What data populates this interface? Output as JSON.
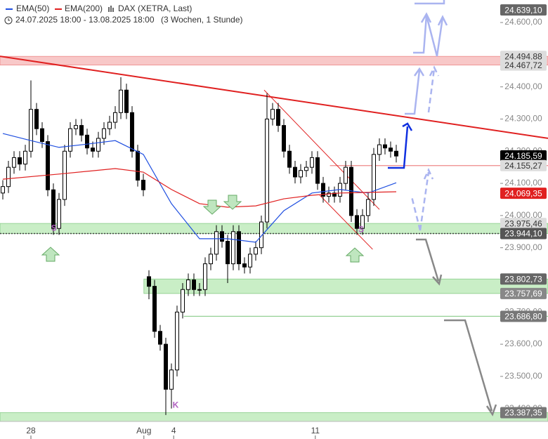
{
  "chart_data": {
    "type": "candlestick",
    "title": "DAX (XETRA, Last)",
    "subtitle": "24.07.2025 18:00 - 13.08.2025 18:00",
    "period": "(3 Wochen, 1 Stunde)",
    "xlim": [
      -0.5,
      97
    ],
    "ylim": [
      23360,
      24670
    ],
    "xticks": [
      {
        "value": 5,
        "label": "28"
      },
      {
        "value": 25.1,
        "label": "Aug"
      },
      {
        "value": 30.4,
        "label": "4"
      },
      {
        "value": 55.6,
        "label": "11"
      }
    ],
    "yticks": [
      {
        "value": 23400,
        "label": "23.400,00"
      },
      {
        "value": 23500,
        "label": "23.500,00"
      },
      {
        "value": 23600,
        "label": "23.600,00"
      },
      {
        "value": 23700,
        "label": "23.700,00"
      },
      {
        "value": 23800,
        "label": "23.800,00"
      },
      {
        "value": 23900,
        "label": "23.900,00"
      },
      {
        "value": 24000,
        "label": "24.000,00"
      },
      {
        "value": 24100,
        "label": "24.100,00"
      },
      {
        "value": 24200,
        "label": "24.200,00"
      },
      {
        "value": 24300,
        "label": "24.300,00"
      },
      {
        "value": 24400,
        "label": "24.400,00"
      },
      {
        "value": 24500,
        "label": "24.500,00"
      },
      {
        "value": 24600,
        "label": "24.600,00"
      }
    ],
    "open": [
      24070,
      24090,
      24150,
      24180,
      24160,
      24200,
      24330,
      24270,
      24230,
      24080,
      23960,
      24050,
      24200,
      24270,
      24280,
      24250,
      24210,
      24200,
      24240,
      24270,
      24290,
      24320,
      24390,
      24320,
      24200,
      24110,
      23810,
      23780,
      23640,
      23600,
      23460,
      23520,
      23700,
      23770,
      23800,
      23770,
      23770,
      23850,
      23880,
      23950,
      23920,
      23850,
      23950,
      23850,
      23840,
      23880,
      23900,
      23980,
      24300,
      24330,
      24280,
      24200,
      24150,
      24120,
      24140,
      24150,
      24180,
      24100,
      24060,
      24070,
      24060,
      24100,
      24150,
      24000,
      23960,
      24000,
      24050,
      24190,
      24220,
      24210,
      24200
    ],
    "high": [
      24110,
      24170,
      24200,
      24200,
      24220,
      24420,
      24350,
      24290,
      24250,
      24100,
      24070,
      24220,
      24290,
      24300,
      24300,
      24270,
      24230,
      24260,
      24290,
      24310,
      24340,
      24430,
      24410,
      24340,
      24220,
      24130,
      23830,
      23800,
      23660,
      23620,
      23540,
      23720,
      23790,
      23820,
      23820,
      23790,
      23870,
      23900,
      23970,
      23970,
      23940,
      23970,
      23970,
      23870,
      23900,
      23920,
      24000,
      24380,
      24350,
      24350,
      24300,
      24220,
      24170,
      24160,
      24170,
      24200,
      24200,
      24120,
      24090,
      24090,
      24120,
      24170,
      24170,
      24020,
      24020,
      24070,
      24210,
      24240,
      24240,
      24230,
      24220
    ],
    "low": [
      24050,
      24070,
      24130,
      24140,
      24140,
      24180,
      24250,
      24210,
      24060,
      23940,
      23940,
      24030,
      24180,
      24250,
      24230,
      24190,
      24180,
      24180,
      24220,
      24250,
      24270,
      24300,
      24300,
      24180,
      24090,
      24060,
      23740,
      23620,
      23580,
      23380,
      23400,
      23500,
      23680,
      23750,
      23750,
      23750,
      23750,
      23830,
      23860,
      23900,
      23790,
      23830,
      23830,
      23820,
      23820,
      23860,
      23880,
      23960,
      24280,
      24260,
      24180,
      24130,
      24100,
      24100,
      24120,
      24130,
      24080,
      24040,
      24040,
      24040,
      24040,
      24080,
      23980,
      23940,
      23940,
      23980,
      24030,
      24170,
      24190,
      24180,
      24165
    ],
    "close": [
      24090,
      24150,
      24180,
      24160,
      24200,
      24330,
      24270,
      24230,
      24080,
      23960,
      24050,
      24200,
      24270,
      24280,
      24250,
      24210,
      24200,
      24240,
      24270,
      24290,
      24320,
      24390,
      24320,
      24200,
      24110,
      24080,
      23780,
      23640,
      23600,
      23460,
      23520,
      23700,
      23770,
      23800,
      23770,
      23770,
      23850,
      23880,
      23950,
      23920,
      23850,
      23950,
      23850,
      23840,
      23880,
      23900,
      23980,
      24300,
      24330,
      24280,
      24200,
      24150,
      24120,
      24140,
      24150,
      24180,
      24100,
      24060,
      24070,
      24060,
      24100,
      24150,
      24000,
      23960,
      24000,
      24050,
      24190,
      24220,
      24210,
      24200,
      24185
    ],
    "series": [
      {
        "name": "EMA(50)",
        "color": "#1f4fe0",
        "x": [
          0,
          5,
          10,
          15,
          20,
          25,
          30,
          35,
          40,
          45,
          50,
          55,
          60,
          65,
          70
        ],
        "values": [
          24255,
          24233,
          24212,
          24222,
          24233,
          24190,
          24037,
          23928,
          23928,
          23917,
          24015,
          24070,
          24081,
          24070,
          24102
        ]
      },
      {
        "name": "EMA(200)",
        "color": "#e02020",
        "x": [
          0,
          10,
          20,
          25,
          30,
          35,
          40,
          45,
          50,
          55,
          60,
          70
        ],
        "values": [
          24113,
          24129,
          24146,
          24135,
          24081,
          24037,
          24026,
          24030,
          24052,
          24063,
          24070,
          24074
        ]
      }
    ],
    "zones": [
      {
        "from": 24467.72,
        "to": 24494.88,
        "start": -0.5,
        "color": "#f8c8c8",
        "edge": "#e88"
      },
      {
        "from": 23944.1,
        "to": 23975.46,
        "start": -0.5,
        "color": "#c9eec6",
        "edge": "#8c8"
      },
      {
        "from": 23757.69,
        "to": 23802.73,
        "start": 25.1,
        "color": "#c9eec6",
        "edge": "#8c8"
      },
      {
        "from": 23360,
        "to": 23387.35,
        "start": -0.5,
        "color": "#c9eec6",
        "edge": "#8c8"
      }
    ],
    "lines": [
      {
        "value": 23686.8,
        "start": 32.2,
        "color": "#8c8"
      },
      {
        "value": 24155.27,
        "start": 58.2,
        "color": "#e88"
      },
      {
        "value": 23944.1,
        "start": -0.5,
        "color": "#444",
        "dash": true
      }
    ],
    "trendlines": [
      {
        "x": [
          -0.5,
          97
        ],
        "y": [
          24495,
          24240
        ],
        "color": "#e02020",
        "width": 2
      },
      {
        "x": [
          46.5,
          67
        ],
        "y": [
          24390,
          24019
        ],
        "color": "#e02020",
        "width": 1
      },
      {
        "x": [
          56.4,
          65.8
        ],
        "y": [
          24063,
          23895
        ],
        "color": "#e02020",
        "width": 1
      }
    ],
    "levels": [
      {
        "value": 24639.1,
        "label": "24.639,10",
        "bg": "#666",
        "fg": "#fff"
      },
      {
        "value": 24494.88,
        "label": "24.494,88",
        "bg": "#ddd",
        "fg": "#333"
      },
      {
        "value": 24467.72,
        "label": "24.467,72",
        "bg": "#ddd",
        "fg": "#333"
      },
      {
        "value": 24185.59,
        "label": "24.185,59",
        "bg": "#000",
        "fg": "#fff"
      },
      {
        "value": 24155.27,
        "label": "24.155,27",
        "bg": "#ddd",
        "fg": "#333"
      },
      {
        "value": 24069.35,
        "label": "24.069,35",
        "bg": "#e02020",
        "fg": "#fff"
      },
      {
        "value": 23975.46,
        "label": "23.975,46",
        "bg": "#ddd",
        "fg": "#333"
      },
      {
        "value": 23944.1,
        "label": "23.944,10",
        "bg": "#555",
        "fg": "#fff"
      },
      {
        "value": 23802.73,
        "label": "23.802,73",
        "bg": "#666",
        "fg": "#fff"
      },
      {
        "value": 23757.69,
        "label": "23.757,69",
        "bg": "#888",
        "fg": "#fff"
      },
      {
        "value": 23686.8,
        "label": "23.686,80",
        "bg": "#777",
        "fg": "#fff"
      },
      {
        "value": 23387.35,
        "label": "23.387,35",
        "bg": "#777",
        "fg": "#fff"
      }
    ],
    "annotations": [
      {
        "text": "S",
        "x": 9.1,
        "y": 23960
      },
      {
        "text": "S",
        "x": 63.75,
        "y": 23955
      },
      {
        "text": "K",
        "x": 30.75,
        "y": 23410
      }
    ]
  }
}
